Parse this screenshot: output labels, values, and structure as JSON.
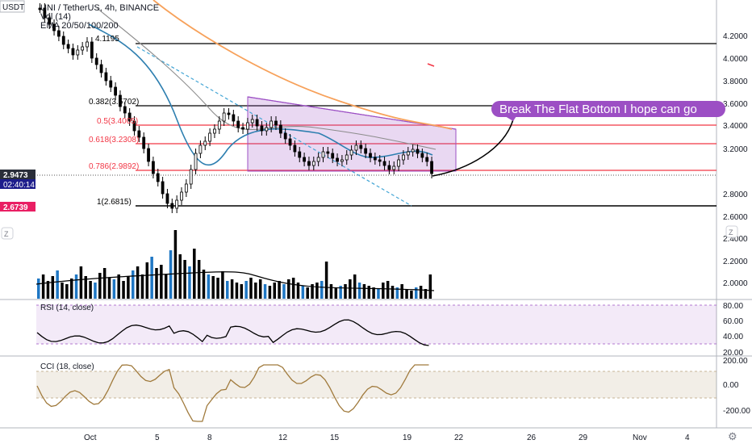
{
  "header": {
    "ticker_box": "USDT",
    "symbol_line": "UNI / TetherUS, 4h, BINANCE",
    "vol_line": "Vol (14)",
    "ema_line": "EMA 20/50/100/200"
  },
  "price_axis": {
    "ticks": [
      "4.2000",
      "4.0000",
      "3.8000",
      "3.6000",
      "3.4000",
      "3.2000",
      "2.8000",
      "2.6000",
      "2.4000",
      "2.2000",
      "2.0000"
    ],
    "current_price": "2.9473",
    "countdown": "02:40:14",
    "low_line_price": "2.6739"
  },
  "fib_levels": [
    {
      "label": "0.382(3.5702)",
      "color": "#000000"
    },
    {
      "label": "0.5(3.4005)",
      "color": "#f23645"
    },
    {
      "label": "0.618(3.2308)",
      "color": "#f23645"
    },
    {
      "label": "0.786(2.9892)",
      "color": "#f23645"
    },
    {
      "label": "1(2.6815)",
      "color": "#000000"
    },
    {
      "label": "4.1195",
      "color": "#000000"
    }
  ],
  "annotation": {
    "callout_text": "Break The Flat Bottom I hope can go"
  },
  "rsi_panel": {
    "title": "RSI (14, close)",
    "ticks": [
      "80.00",
      "60.00",
      "40.00",
      "20.00"
    ]
  },
  "cci_panel": {
    "title": "CCI (18, close)",
    "ticks": [
      "200.00",
      "0.00",
      "-200.00"
    ]
  },
  "time_axis": {
    "labels": [
      "Oct",
      "5",
      "8",
      "12",
      "15",
      "19",
      "22",
      "26",
      "29",
      "Nov",
      "4"
    ]
  },
  "buttons": {
    "left_z": "Z",
    "right_z": "Z",
    "gear": "⚙"
  },
  "colors": {
    "accent_purple": "#9c4fc4",
    "fib_red": "#f23645",
    "price_badge": "#2a2e39",
    "countdown_badge": "#1e1e8c",
    "low_badge": "#e91e63",
    "ema_orange": "#f7a15a",
    "ema_blue": "#2e7fb0",
    "ema_grey": "#8c8c8c"
  }
}
